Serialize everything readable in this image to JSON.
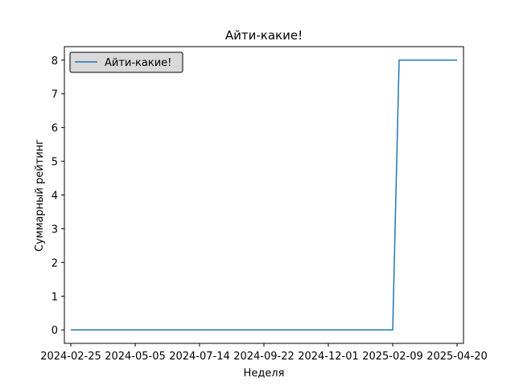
{
  "chart_data": {
    "type": "line",
    "title": "Айти-какие!",
    "xlabel": "Неделя",
    "ylabel": "Суммарный рейтинг",
    "x_tick_labels": [
      "2024-02-25",
      "2024-05-05",
      "2024-07-14",
      "2024-09-22",
      "2024-12-01",
      "2025-02-09",
      "2025-04-20"
    ],
    "y_tick_labels": [
      "0",
      "1",
      "2",
      "3",
      "4",
      "5",
      "6",
      "7",
      "8"
    ],
    "xlim": [
      "2024-02-18",
      "2025-04-27"
    ],
    "ylim": [
      -0.4,
      8.4
    ],
    "grid": false,
    "legend_position": "top-left",
    "series": [
      {
        "name": "Айти-какие!",
        "color": "#1f77b4",
        "x": [
          "2024-02-25",
          "2025-02-09",
          "2025-02-16",
          "2025-04-20"
        ],
        "y": [
          0,
          0,
          8,
          8
        ]
      }
    ]
  }
}
